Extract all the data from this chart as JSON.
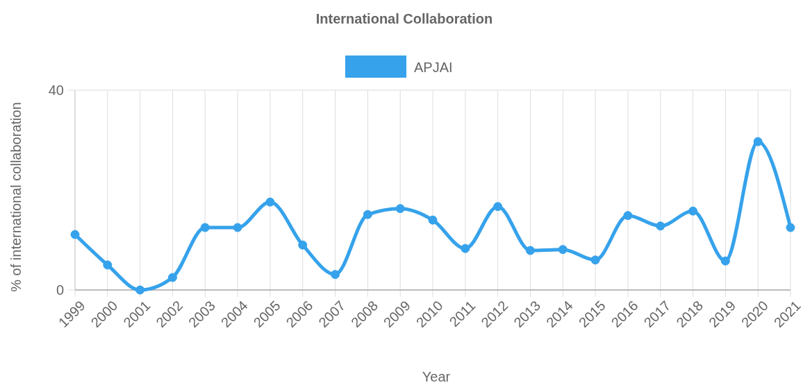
{
  "chart_data": {
    "type": "line",
    "title": "International Collaboration",
    "xlabel": "Year",
    "ylabel": "% of international collaboration",
    "categories": [
      "1999",
      "2000",
      "2001",
      "2002",
      "2003",
      "2004",
      "2005",
      "2006",
      "2007",
      "2008",
      "2009",
      "2010",
      "2011",
      "2012",
      "2013",
      "2014",
      "2015",
      "2016",
      "2017",
      "2018",
      "2019",
      "2020",
      "2021"
    ],
    "series": [
      {
        "name": "APJAI",
        "color": "#36a2eb",
        "values": [
          11.1,
          5.0,
          0,
          2.5,
          12.5,
          12.5,
          17.6,
          9.0,
          3.1,
          15.1,
          16.3,
          14.0,
          8.3,
          16.7,
          7.9,
          8.1,
          6.0,
          14.9,
          12.8,
          15.8,
          5.8,
          29.7,
          12.5
        ]
      }
    ],
    "ylim": [
      0,
      40
    ],
    "yticks": [
      0,
      40
    ],
    "grid": true,
    "legend": "top",
    "marker": "circle",
    "line_style": "solid"
  }
}
